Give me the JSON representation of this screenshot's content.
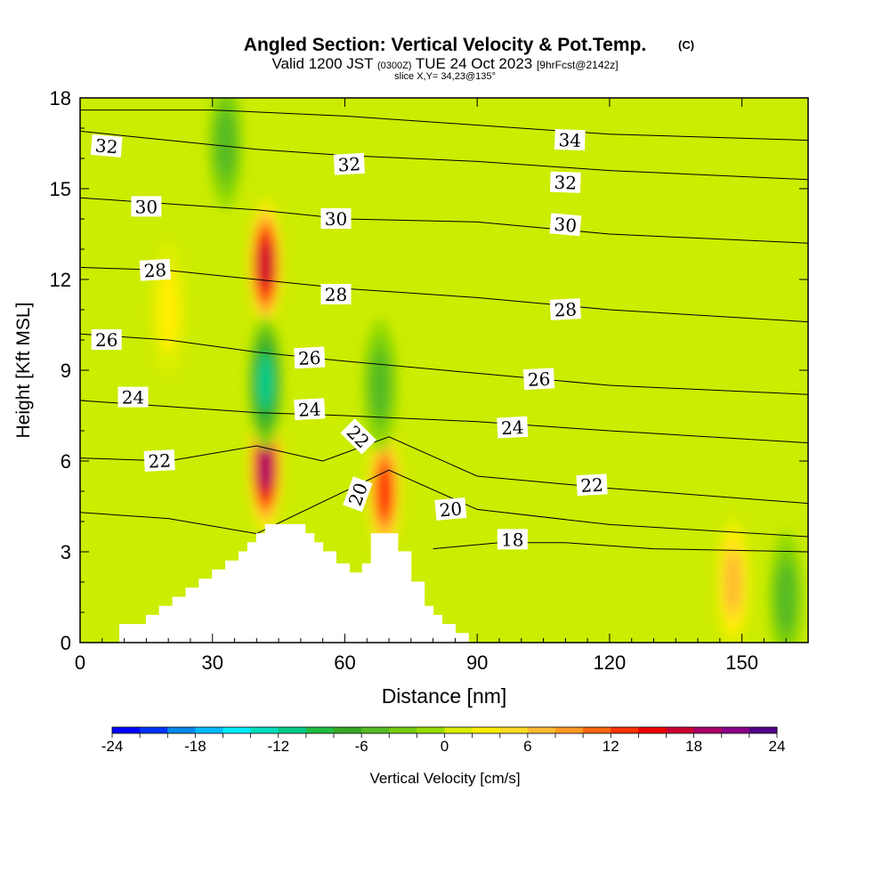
{
  "header": {
    "title": "Angled Section: Vertical Velocity & Pot.Temp.",
    "copyright": "(C)",
    "valid_prefix": "Valid 1200 JST",
    "valid_zulu": "(0300Z)",
    "valid_date": "TUE 24 Oct 2023",
    "forecast": "[9hrFcst@2142z]",
    "slice": "slice X,Y= 34,23@135°"
  },
  "chart_data": {
    "type": "contour",
    "xlabel": "Distance [nm]",
    "ylabel": "Height [Kft MSL]",
    "xlim": [
      0,
      165
    ],
    "ylim": [
      0,
      18
    ],
    "xticks": [
      0,
      30,
      60,
      90,
      120,
      150
    ],
    "yticks": [
      0,
      3,
      6,
      9,
      12,
      15,
      18
    ],
    "colorbar": {
      "label": "Vertical Velocity [cm/s]",
      "min": -24,
      "max": 24,
      "step": 2,
      "tick_labels": [
        "-24",
        "-18",
        "-12",
        "-6",
        "0",
        "6",
        "12",
        "18",
        "24"
      ],
      "colors": [
        "#0000ff",
        "#0033ff",
        "#0088ee",
        "#00bbff",
        "#00eeff",
        "#00ddbb",
        "#00cc88",
        "#22bb44",
        "#33aa22",
        "#55bb22",
        "#77cc11",
        "#99dd00",
        "#ddee00",
        "#ffee00",
        "#ffdd22",
        "#ffbb33",
        "#ff9922",
        "#ff6611",
        "#ff3300",
        "#ee0000",
        "#cc0033",
        "#aa0066",
        "#880088",
        "#550088"
      ]
    },
    "velocity_features": [
      {
        "x": 42,
        "y": 12.5,
        "value": 18
      },
      {
        "x": 42,
        "y": 5.8,
        "value": 20
      },
      {
        "x": 42,
        "y": 8.6,
        "value": -12
      },
      {
        "x": 69,
        "y": 5.0,
        "value": 14
      },
      {
        "x": 68,
        "y": 8.5,
        "value": -6
      },
      {
        "x": 148,
        "y": 2.0,
        "value": 8
      },
      {
        "x": 160,
        "y": 1.5,
        "value": -6
      },
      {
        "x": 33,
        "y": 16.5,
        "value": -6
      },
      {
        "x": 20,
        "y": 11,
        "value": 4
      }
    ],
    "terrain": [
      [
        9,
        0
      ],
      [
        9,
        0.6
      ],
      [
        15,
        0.6
      ],
      [
        15,
        0.9
      ],
      [
        18,
        0.9
      ],
      [
        18,
        1.2
      ],
      [
        21,
        1.2
      ],
      [
        21,
        1.5
      ],
      [
        24,
        1.5
      ],
      [
        24,
        1.8
      ],
      [
        27,
        1.8
      ],
      [
        27,
        2.1
      ],
      [
        30,
        2.1
      ],
      [
        30,
        2.4
      ],
      [
        33,
        2.4
      ],
      [
        33,
        2.7
      ],
      [
        36,
        2.7
      ],
      [
        36,
        3.0
      ],
      [
        38,
        3.0
      ],
      [
        38,
        3.3
      ],
      [
        40,
        3.3
      ],
      [
        40,
        3.6
      ],
      [
        42,
        3.6
      ],
      [
        42,
        3.9
      ],
      [
        46,
        3.9
      ],
      [
        46,
        3.9
      ],
      [
        51,
        3.9
      ],
      [
        51,
        3.6
      ],
      [
        53,
        3.6
      ],
      [
        53,
        3.3
      ],
      [
        55,
        3.3
      ],
      [
        55,
        3.0
      ],
      [
        58,
        3.0
      ],
      [
        58,
        2.6
      ],
      [
        61,
        2.6
      ],
      [
        61,
        2.3
      ],
      [
        64,
        2.3
      ],
      [
        64,
        2.6
      ],
      [
        66,
        2.6
      ],
      [
        66,
        3.6
      ],
      [
        72,
        3.6
      ],
      [
        72,
        3.0
      ],
      [
        75,
        3.0
      ],
      [
        75,
        2.0
      ],
      [
        78,
        2.0
      ],
      [
        78,
        1.2
      ],
      [
        80,
        1.2
      ],
      [
        80,
        0.9
      ],
      [
        82,
        0.9
      ],
      [
        82,
        0.6
      ],
      [
        85,
        0.6
      ],
      [
        85,
        0.3
      ],
      [
        88,
        0.3
      ],
      [
        88,
        0
      ]
    ],
    "contours": [
      {
        "label": "34",
        "points": [
          [
            0,
            17.6
          ],
          [
            30,
            17.6
          ],
          [
            60,
            17.4
          ],
          [
            90,
            17.1
          ],
          [
            120,
            16.8
          ],
          [
            165,
            16.6
          ]
        ]
      },
      {
        "label": "32",
        "points": [
          [
            0,
            16.9
          ],
          [
            20,
            16.6
          ],
          [
            40,
            16.3
          ],
          [
            60,
            16.1
          ],
          [
            90,
            15.9
          ],
          [
            120,
            15.6
          ],
          [
            165,
            15.3
          ]
        ]
      },
      {
        "label": "30",
        "points": [
          [
            0,
            14.7
          ],
          [
            20,
            14.5
          ],
          [
            40,
            14.3
          ],
          [
            60,
            14.0
          ],
          [
            90,
            13.9
          ],
          [
            120,
            13.5
          ],
          [
            165,
            13.2
          ]
        ]
      },
      {
        "label": "28",
        "points": [
          [
            0,
            12.4
          ],
          [
            20,
            12.3
          ],
          [
            40,
            12.0
          ],
          [
            60,
            11.7
          ],
          [
            90,
            11.4
          ],
          [
            120,
            11.0
          ],
          [
            165,
            10.6
          ]
        ]
      },
      {
        "label": "26",
        "points": [
          [
            0,
            10.2
          ],
          [
            20,
            10.0
          ],
          [
            40,
            9.6
          ],
          [
            60,
            9.3
          ],
          [
            90,
            8.9
          ],
          [
            120,
            8.5
          ],
          [
            165,
            8.2
          ]
        ]
      },
      {
        "label": "24",
        "points": [
          [
            0,
            8.0
          ],
          [
            20,
            7.8
          ],
          [
            40,
            7.6
          ],
          [
            60,
            7.5
          ],
          [
            90,
            7.3
          ],
          [
            120,
            7.0
          ],
          [
            165,
            6.6
          ]
        ]
      },
      {
        "label": "22",
        "points": [
          [
            0,
            6.1
          ],
          [
            20,
            6.0
          ],
          [
            40,
            6.5
          ],
          [
            55,
            6.0
          ],
          [
            70,
            6.8
          ],
          [
            90,
            5.5
          ],
          [
            120,
            5.1
          ],
          [
            165,
            4.6
          ]
        ]
      },
      {
        "label": "20",
        "points": [
          [
            0,
            4.3
          ],
          [
            20,
            4.1
          ],
          [
            40,
            3.6
          ],
          [
            70,
            5.7
          ],
          [
            90,
            4.4
          ],
          [
            120,
            3.9
          ],
          [
            165,
            3.5
          ]
        ]
      },
      {
        "label": "18",
        "points": [
          [
            80,
            3.1
          ],
          [
            95,
            3.3
          ],
          [
            110,
            3.3
          ],
          [
            130,
            3.1
          ],
          [
            165,
            3.0
          ]
        ]
      }
    ],
    "contour_labels": [
      {
        "text": "32",
        "x": 6,
        "y": 16.4,
        "rot": 5
      },
      {
        "text": "34",
        "x": 111,
        "y": 16.6,
        "rot": 2
      },
      {
        "text": "32",
        "x": 61,
        "y": 15.8,
        "rot": -3
      },
      {
        "text": "32",
        "x": 110,
        "y": 15.2,
        "rot": 2
      },
      {
        "text": "30",
        "x": 15,
        "y": 14.4,
        "rot": 0
      },
      {
        "text": "30",
        "x": 58,
        "y": 14.0,
        "rot": 0
      },
      {
        "text": "30",
        "x": 110,
        "y": 13.8,
        "rot": 5
      },
      {
        "text": "28",
        "x": 17,
        "y": 12.3,
        "rot": -3
      },
      {
        "text": "28",
        "x": 58,
        "y": 11.5,
        "rot": 0
      },
      {
        "text": "28",
        "x": 110,
        "y": 11.0,
        "rot": -3
      },
      {
        "text": "26",
        "x": 6,
        "y": 10.0,
        "rot": 0
      },
      {
        "text": "26",
        "x": 52,
        "y": 9.4,
        "rot": -3
      },
      {
        "text": "26",
        "x": 104,
        "y": 8.7,
        "rot": -3
      },
      {
        "text": "24",
        "x": 12,
        "y": 8.1,
        "rot": 0
      },
      {
        "text": "24",
        "x": 52,
        "y": 7.7,
        "rot": -3
      },
      {
        "text": "24",
        "x": 98,
        "y": 7.1,
        "rot": -3
      },
      {
        "text": "22",
        "x": 18,
        "y": 6.0,
        "rot": -3
      },
      {
        "text": "22",
        "x": 63,
        "y": 6.8,
        "rot": 45
      },
      {
        "text": "22",
        "x": 116,
        "y": 5.2,
        "rot": -3
      },
      {
        "text": "20",
        "x": 63,
        "y": 4.9,
        "rot": -70
      },
      {
        "text": "20",
        "x": 84,
        "y": 4.4,
        "rot": -5
      },
      {
        "text": "18",
        "x": 98,
        "y": 3.4,
        "rot": 0
      }
    ]
  }
}
